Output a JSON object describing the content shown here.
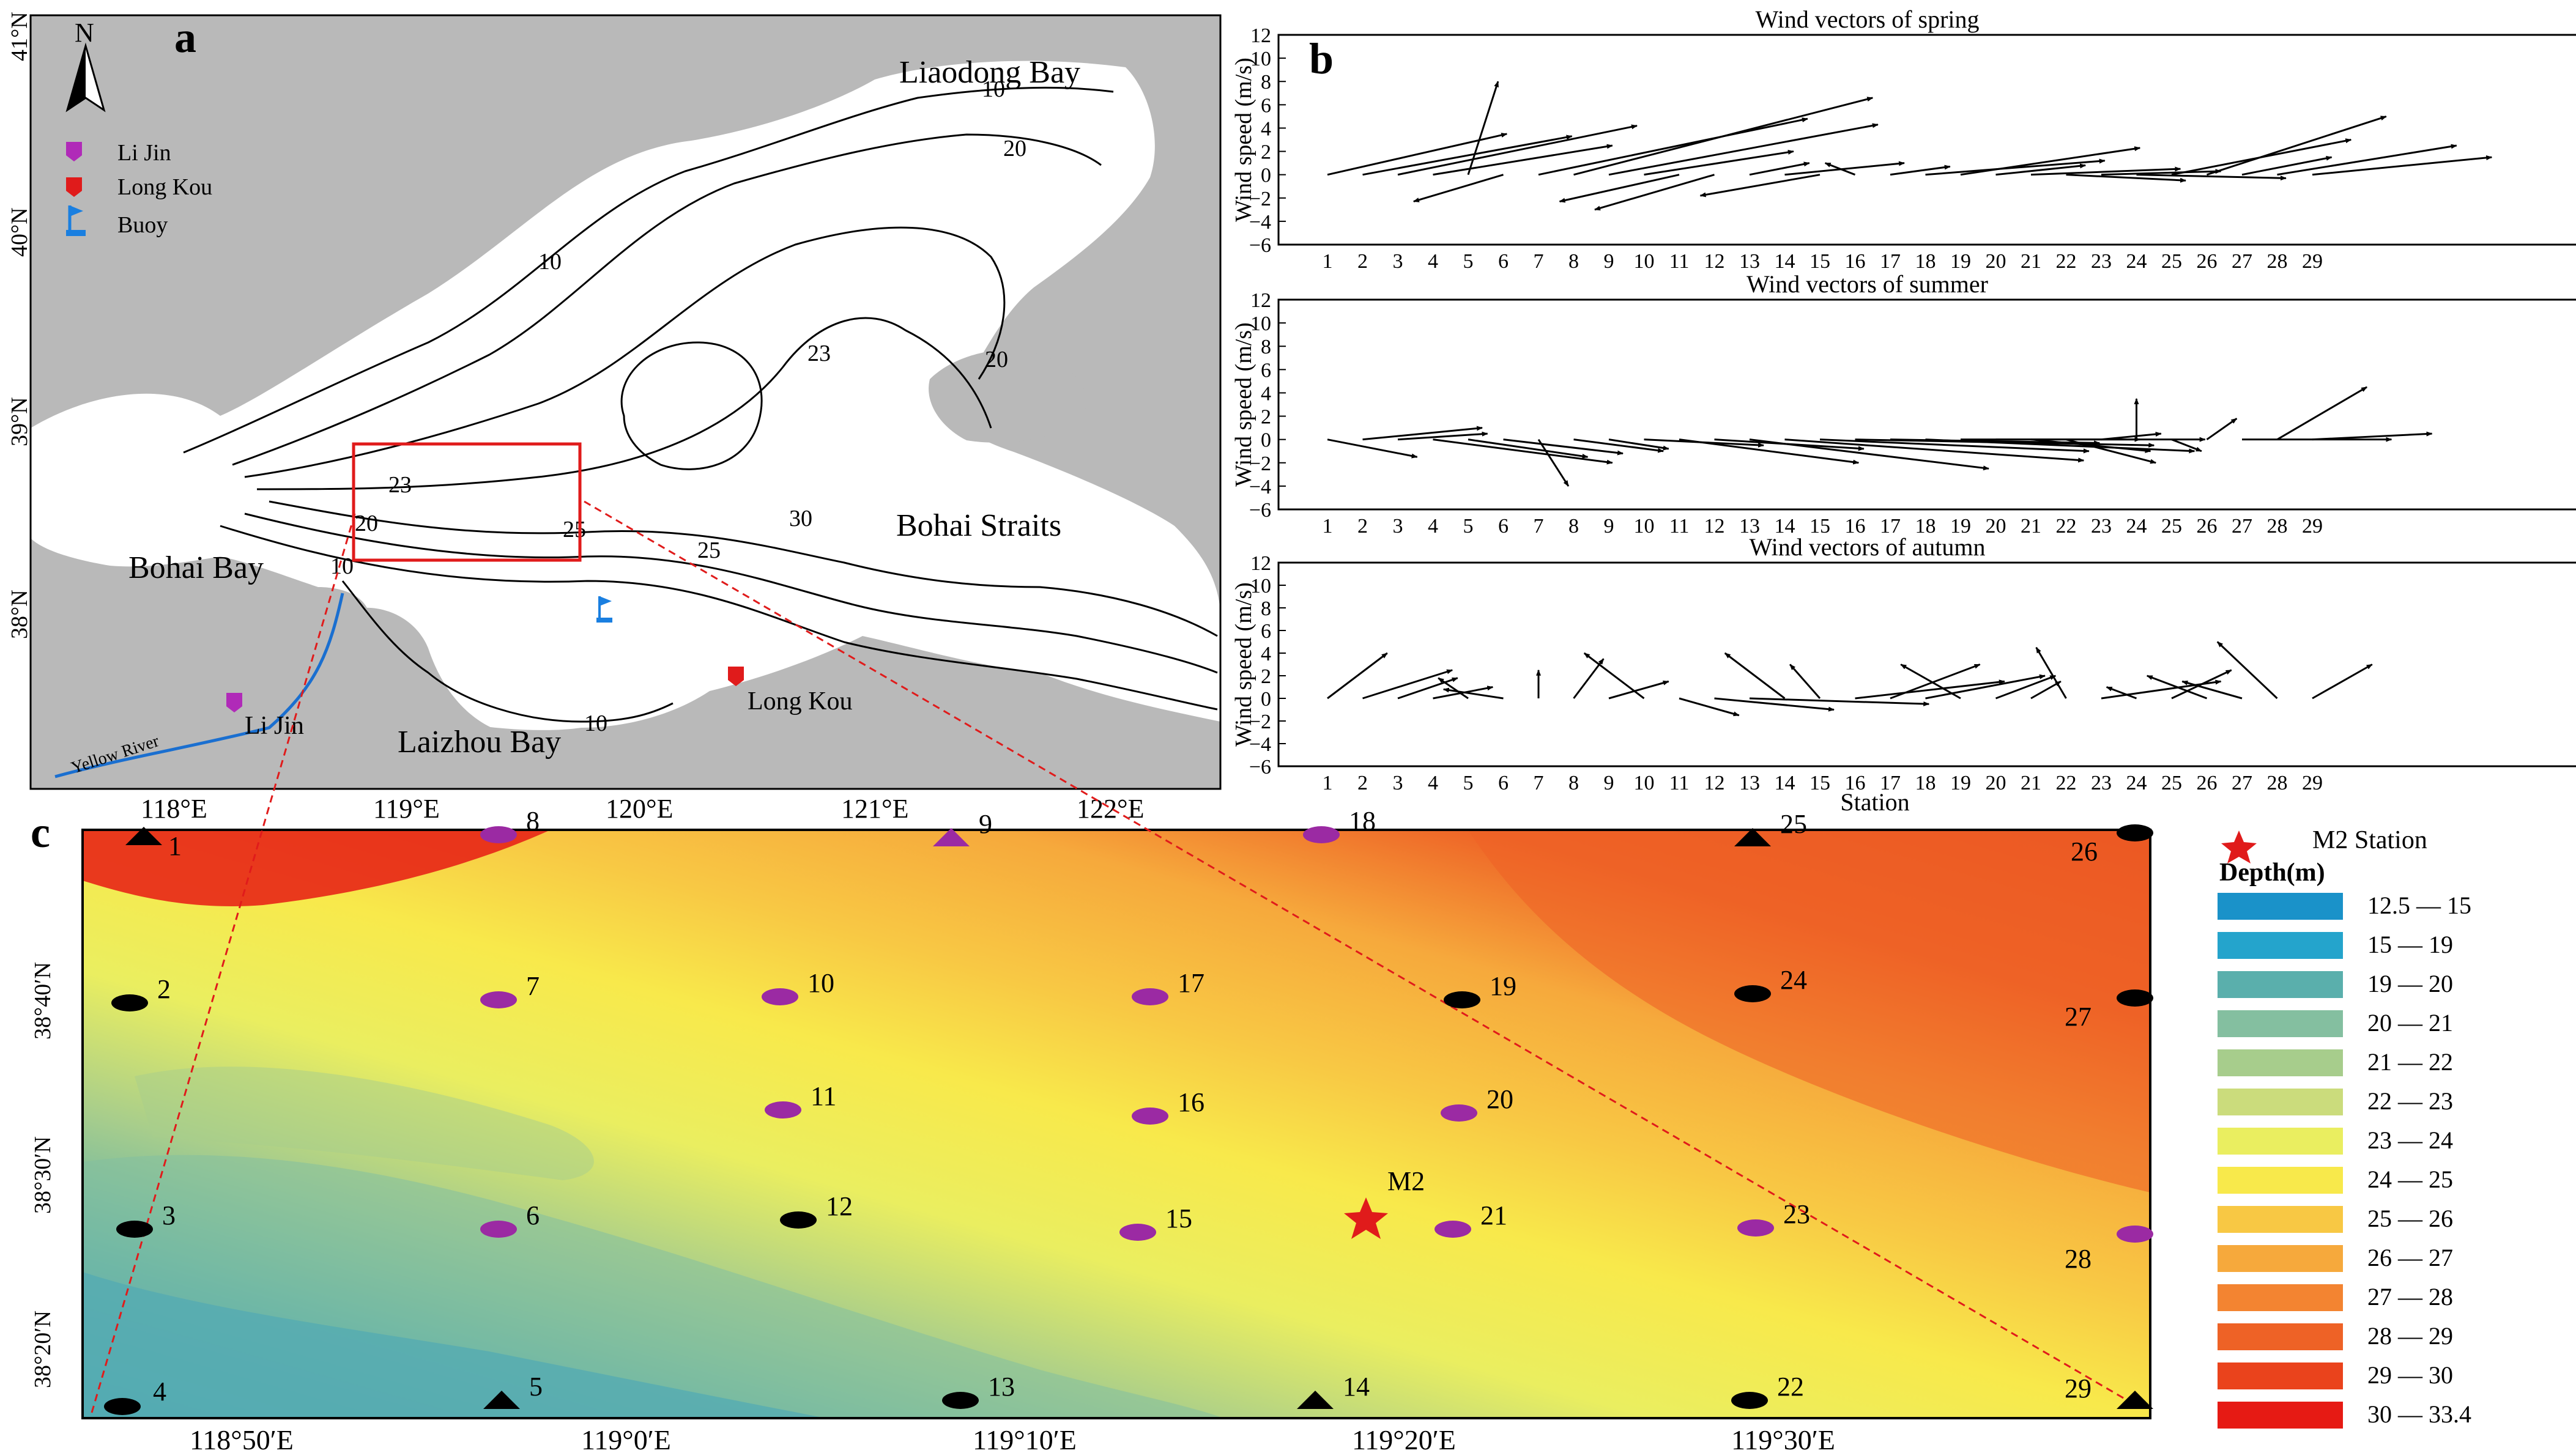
{
  "panel_a": {
    "letter": "a",
    "north": "N",
    "legend": [
      {
        "label": "Li Jin",
        "color": "#b02ab8"
      },
      {
        "label": "Long Kou",
        "color": "#e01b1b"
      },
      {
        "label": "Buoy",
        "color": "#1a7fe0"
      }
    ],
    "place_names": {
      "liaodong": "Liaodong Bay",
      "bohai_bay": "Bohai Bay",
      "laizhou": "Laizhou Bay",
      "straits": "Bohai Straits",
      "lijin": "Li Jin",
      "longkou": "Long Kou",
      "river": "Yellow River"
    },
    "contours": {
      "c10a": "10",
      "c20a": "20",
      "c10b": "10",
      "c23a": "23",
      "c20b": "20",
      "c30": "30",
      "c23b": "23",
      "c20c": "20",
      "c25a": "25",
      "c25b": "25",
      "c10c": "10",
      "c10d": "10"
    },
    "lat_ticks": [
      "41°N",
      "40°N",
      "39°N",
      "38°N"
    ],
    "lon_ticks": [
      "118°E",
      "119°E",
      "120°E",
      "121°E",
      "122°E"
    ]
  },
  "panel_b": {
    "letter": "b",
    "ylabel": "Wind speed (m/s)",
    "xlabel": "Station",
    "yticks": [
      "12",
      "10",
      "8",
      "6",
      "4",
      "2",
      "0",
      "−2",
      "−4",
      "−6"
    ],
    "stations": [
      "1",
      "2",
      "3",
      "4",
      "5",
      "6",
      "7",
      "8",
      "9",
      "10",
      "11",
      "12",
      "13",
      "14",
      "15",
      "16",
      "17",
      "18",
      "19",
      "20",
      "21",
      "22",
      "23",
      "24",
      "25",
      "26",
      "27",
      "28",
      "29"
    ],
    "titles": [
      "Wind vectors of spring",
      "Wind vectors of summer",
      "Wind vectors of autumn"
    ]
  },
  "chart_data": [
    {
      "type": "quiver",
      "title": "Wind vectors of spring",
      "xlabel": "Station",
      "ylabel": "Wind speed (m/s)",
      "ylim": [
        -6,
        12
      ],
      "vectors": [
        [
          1,
          6,
          3.5
        ],
        [
          2,
          7,
          3.3
        ],
        [
          3,
          8,
          4.2
        ],
        [
          4,
          6,
          2.5
        ],
        [
          5,
          1,
          8
        ],
        [
          6,
          -3,
          -2.3
        ],
        [
          7,
          9,
          4.8
        ],
        [
          8,
          10,
          6.6
        ],
        [
          9,
          9,
          4.3
        ],
        [
          10,
          5,
          2
        ],
        [
          11,
          -4,
          -2.3
        ],
        [
          12,
          -4,
          -3
        ],
        [
          13,
          2,
          1
        ],
        [
          14,
          4,
          1
        ],
        [
          15,
          -4,
          -1.8
        ],
        [
          16,
          -1,
          1
        ],
        [
          17,
          2,
          0.7
        ],
        [
          18,
          6,
          1.2
        ],
        [
          19,
          6,
          2.3
        ],
        [
          20,
          3,
          0.8
        ],
        [
          21,
          5,
          0.5
        ],
        [
          22,
          4,
          -0.5
        ],
        [
          23,
          4,
          0.3
        ],
        [
          24,
          5,
          -0.3
        ],
        [
          25,
          6,
          3
        ],
        [
          26,
          6,
          5
        ],
        [
          27,
          3,
          1.5
        ],
        [
          28,
          6,
          2.5
        ],
        [
          29,
          6,
          1.5
        ]
      ]
    },
    {
      "type": "quiver",
      "title": "Wind vectors of summer",
      "xlabel": "Station",
      "ylabel": "Wind speed (m/s)",
      "ylim": [
        -6,
        12
      ],
      "vectors": [
        [
          1,
          3,
          -1.5
        ],
        [
          2,
          4,
          1
        ],
        [
          3,
          3,
          0.5
        ],
        [
          4,
          6,
          -2
        ],
        [
          5,
          4,
          -1.5
        ],
        [
          6,
          4,
          -1.2
        ],
        [
          7,
          1,
          -4
        ],
        [
          8,
          3,
          -1
        ],
        [
          9,
          2,
          -0.8
        ],
        [
          10,
          4,
          -0.5
        ],
        [
          11,
          6,
          -2
        ],
        [
          12,
          5,
          -0.8
        ],
        [
          13,
          8,
          -2.5
        ],
        [
          14,
          10,
          -1.8
        ],
        [
          15,
          9,
          -1
        ],
        [
          16,
          10,
          -0.5
        ],
        [
          17,
          7,
          -0.3
        ],
        [
          18,
          9,
          -1
        ],
        [
          19,
          6,
          0
        ],
        [
          20,
          7,
          0
        ],
        [
          21,
          4,
          -1
        ],
        [
          22,
          3,
          -2
        ],
        [
          23,
          2,
          0.5
        ],
        [
          24,
          0,
          3.5
        ],
        [
          25,
          1,
          -1
        ],
        [
          26,
          1,
          1.8
        ],
        [
          27,
          5,
          0
        ],
        [
          28,
          3,
          4.5
        ],
        [
          29,
          4,
          0.5
        ]
      ]
    },
    {
      "type": "quiver",
      "title": "Wind vectors of autumn",
      "xlabel": "Station",
      "ylabel": "Wind speed (m/s)",
      "ylim": [
        -6,
        12
      ],
      "vectors": [
        [
          1,
          2,
          4
        ],
        [
          2,
          3,
          2.5
        ],
        [
          3,
          2,
          1.8
        ],
        [
          4,
          2,
          1
        ],
        [
          5,
          -1,
          1.8
        ],
        [
          6,
          -2,
          0.8
        ],
        [
          7,
          0,
          2.5
        ],
        [
          8,
          1,
          3.5
        ],
        [
          9,
          2,
          1.5
        ],
        [
          10,
          -2,
          4
        ],
        [
          11,
          2,
          -1.5
        ],
        [
          12,
          4,
          -1
        ],
        [
          13,
          6,
          -0.5
        ],
        [
          14,
          -2,
          4
        ],
        [
          15,
          -1,
          3
        ],
        [
          16,
          5,
          1.5
        ],
        [
          17,
          3,
          3
        ],
        [
          18,
          4,
          2
        ],
        [
          19,
          -2,
          3
        ],
        [
          20,
          2,
          2
        ],
        [
          21,
          1,
          1.5
        ],
        [
          22,
          -1,
          4.5
        ],
        [
          23,
          4,
          1.5
        ],
        [
          24,
          -1,
          1
        ],
        [
          25,
          2,
          2.5
        ],
        [
          26,
          -2,
          2
        ],
        [
          27,
          -2,
          1.5
        ],
        [
          28,
          -2,
          5
        ],
        [
          29,
          2,
          3
        ]
      ]
    }
  ],
  "panel_c": {
    "letter": "c",
    "legend_title": "Depth(m)",
    "m2_legend": "M2 Station",
    "m2_label": "M2",
    "depth_legend": [
      {
        "label": "12.5 — 15",
        "color": "#1a92c9"
      },
      {
        "label": "15 — 19",
        "color": "#24a4cc"
      },
      {
        "label": "19 — 20",
        "color": "#5aafac"
      },
      {
        "label": "20 — 21",
        "color": "#84bfa0"
      },
      {
        "label": "21 — 22",
        "color": "#a7cd8c"
      },
      {
        "label": "22 — 23",
        "color": "#cbdc7c"
      },
      {
        "label": "23 — 24",
        "color": "#eaee60"
      },
      {
        "label": "24 — 25",
        "color": "#f8e94b"
      },
      {
        "label": "25 — 26",
        "color": "#f8c844"
      },
      {
        "label": "26 — 27",
        "color": "#f6a93c"
      },
      {
        "label": "27 — 28",
        "color": "#f38431"
      },
      {
        "label": "28 — 29",
        "color": "#ee6226"
      },
      {
        "label": "29 — 30",
        "color": "#ea431c"
      },
      {
        "label": "30 — 33.4",
        "color": "#e61a14"
      }
    ],
    "lat_ticks": [
      "38°40′N",
      "38°30′N",
      "38°20′N"
    ],
    "lon_ticks": [
      "118°50′E",
      "119°0′E",
      "119°10′E",
      "119°20′E",
      "119°30′E"
    ],
    "stations": [
      {
        "id": "1",
        "kind": "triangle",
        "color": "black"
      },
      {
        "id": "2",
        "kind": "ellipse",
        "color": "black"
      },
      {
        "id": "3",
        "kind": "ellipse",
        "color": "black"
      },
      {
        "id": "4",
        "kind": "ellipse",
        "color": "black"
      },
      {
        "id": "5",
        "kind": "triangle",
        "color": "black"
      },
      {
        "id": "6",
        "kind": "ellipse",
        "color": "purple"
      },
      {
        "id": "7",
        "kind": "ellipse",
        "color": "purple"
      },
      {
        "id": "8",
        "kind": "ellipse",
        "color": "purple"
      },
      {
        "id": "9",
        "kind": "triangle",
        "color": "purple"
      },
      {
        "id": "10",
        "kind": "ellipse",
        "color": "purple"
      },
      {
        "id": "11",
        "kind": "ellipse",
        "color": "purple"
      },
      {
        "id": "12",
        "kind": "ellipse",
        "color": "black"
      },
      {
        "id": "13",
        "kind": "ellipse",
        "color": "black"
      },
      {
        "id": "14",
        "kind": "triangle",
        "color": "black"
      },
      {
        "id": "15",
        "kind": "ellipse",
        "color": "purple"
      },
      {
        "id": "16",
        "kind": "ellipse",
        "color": "purple"
      },
      {
        "id": "17",
        "kind": "ellipse",
        "color": "purple"
      },
      {
        "id": "18",
        "kind": "ellipse",
        "color": "purple"
      },
      {
        "id": "19",
        "kind": "ellipse",
        "color": "black"
      },
      {
        "id": "20",
        "kind": "ellipse",
        "color": "purple"
      },
      {
        "id": "21",
        "kind": "ellipse",
        "color": "purple"
      },
      {
        "id": "22",
        "kind": "ellipse",
        "color": "black"
      },
      {
        "id": "23",
        "kind": "ellipse",
        "color": "purple"
      },
      {
        "id": "24",
        "kind": "ellipse",
        "color": "black"
      },
      {
        "id": "25",
        "kind": "triangle",
        "color": "black"
      },
      {
        "id": "26",
        "kind": "ellipse",
        "color": "black"
      },
      {
        "id": "27",
        "kind": "ellipse",
        "color": "black"
      },
      {
        "id": "28",
        "kind": "ellipse",
        "color": "purple"
      },
      {
        "id": "29",
        "kind": "triangle",
        "color": "black"
      }
    ]
  }
}
